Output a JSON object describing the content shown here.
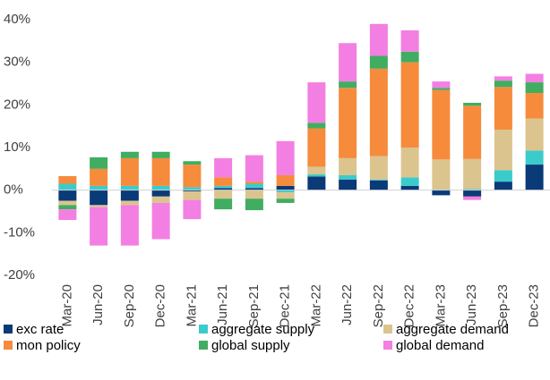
{
  "chart_data": {
    "type": "stacked_bar",
    "categories": [
      "Mar-20",
      "Jun-20",
      "Sep-20",
      "Dec-20",
      "Mar-21",
      "Jun-21",
      "Sep-21",
      "Dec-21",
      "Mar-22",
      "Jun-22",
      "Sep-22",
      "Dec-22",
      "Mar-23",
      "Jun-23",
      "Sep-23",
      "Dec-23"
    ],
    "series": [
      {
        "name": "exc rate",
        "color": "#0b3a78",
        "values": [
          -2.5,
          -3.5,
          -2.5,
          -1.5,
          -0.3,
          0.5,
          0.5,
          1,
          3.2,
          2.5,
          2.3,
          1,
          -1.2,
          -1.5,
          2,
          6
        ]
      },
      {
        "name": "aggregate supply",
        "color": "#3ccbcb",
        "values": [
          1.5,
          1,
          1,
          1,
          0.7,
          0.5,
          1,
          -0.5,
          0.5,
          1,
          0.2,
          2,
          0.2,
          0.3,
          2.7,
          3.3
        ]
      },
      {
        "name": "aggregate demand",
        "color": "#dcc48e",
        "values": [
          -1,
          -0.5,
          -1,
          -1.5,
          -2,
          -2,
          -2,
          -1.5,
          1.8,
          4,
          5.5,
          7,
          7,
          7,
          9.5,
          7.5
        ]
      },
      {
        "name": "mon policy",
        "color": "#f68b3c",
        "values": [
          1.8,
          4,
          6.5,
          6.5,
          5.3,
          2,
          0.5,
          2.5,
          9,
          16.5,
          20.5,
          20,
          16.3,
          12.5,
          10,
          6
        ]
      },
      {
        "name": "global supply",
        "color": "#41ad61",
        "values": [
          -1,
          2.7,
          1.5,
          1.5,
          0.8,
          -2.5,
          -2.7,
          -1,
          1.3,
          1.5,
          3,
          2.5,
          0.5,
          0.7,
          1.5,
          2.5
        ]
      },
      {
        "name": "global demand",
        "color": "#f37fe3",
        "values": [
          -2.5,
          -9,
          -9.5,
          -8.5,
          -4.5,
          4.5,
          6.2,
          8,
          9.5,
          9,
          7.5,
          5,
          1.5,
          -0.8,
          1,
          2
        ]
      }
    ],
    "ylim": [
      -20,
      40
    ],
    "yticks": [
      {
        "value": -20,
        "label": "-20%"
      },
      {
        "value": -10,
        "label": "-10%"
      },
      {
        "value": 0,
        "label": "0%"
      },
      {
        "value": 10,
        "label": "10%"
      },
      {
        "value": 20,
        "label": "20%"
      },
      {
        "value": 30,
        "label": "30%"
      },
      {
        "value": 40,
        "label": "40%"
      }
    ],
    "legend": "bottom"
  }
}
